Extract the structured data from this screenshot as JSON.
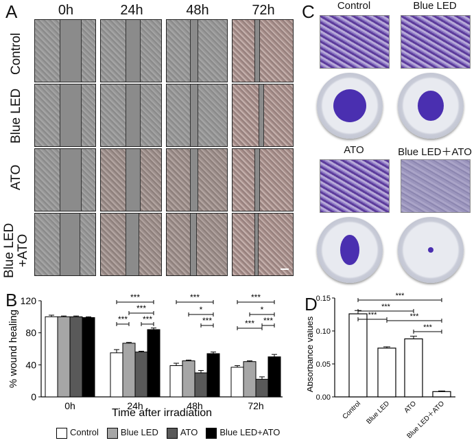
{
  "panel_labels": {
    "a": "A",
    "b": "B",
    "c": "C",
    "d": "D"
  },
  "panel_a": {
    "time_headers": [
      "0h",
      "24h",
      "48h",
      "72h"
    ],
    "row_labels": [
      "Control",
      "Blue LED",
      "ATO",
      "Blue LED\n+ATO"
    ],
    "row_label_lines": [
      [
        "Control"
      ],
      [
        "Blue LED"
      ],
      [
        "ATO"
      ],
      [
        "Blue LED",
        "+ATO"
      ]
    ]
  },
  "panel_c": {
    "labels": [
      "Control",
      "Blue LED",
      "ATO",
      "Blue LED＋ATO"
    ]
  },
  "chart_data": [
    {
      "type": "bar",
      "panel": "B",
      "categories": [
        "0h",
        "24h",
        "48h",
        "72h"
      ],
      "series": [
        {
          "name": "Control",
          "values": [
            100,
            55,
            39,
            37
          ],
          "errors": [
            2,
            4,
            3,
            2
          ],
          "color": "#ffffff"
        },
        {
          "name": "Blue LED",
          "values": [
            100,
            67,
            45,
            44
          ],
          "errors": [
            1,
            1,
            1,
            1
          ],
          "color": "#a6a6a6"
        },
        {
          "name": "ATO",
          "values": [
            100,
            56,
            30,
            22
          ],
          "errors": [
            1,
            1,
            3,
            3
          ],
          "color": "#595959"
        },
        {
          "name": "Blue LED+ATO",
          "values": [
            99,
            84,
            54,
            50
          ],
          "errors": [
            1,
            2,
            2,
            3
          ],
          "color": "#000000"
        }
      ],
      "xlabel": "Time after irradiation",
      "ylabel": "% wound healing",
      "ylim": [
        0,
        120
      ],
      "yticks": [
        "0",
        "40",
        "80",
        "120"
      ],
      "significance": [
        {
          "group": "24h",
          "from": 0,
          "to": 3,
          "label": "***"
        },
        {
          "group": "24h",
          "from": 1,
          "to": 3,
          "label": "***"
        },
        {
          "group": "24h",
          "from": 0,
          "to": 1,
          "label": "***"
        },
        {
          "group": "24h",
          "from": 2,
          "to": 3,
          "label": "***"
        },
        {
          "group": "48h",
          "from": 0,
          "to": 3,
          "label": "***"
        },
        {
          "group": "48h",
          "from": 1,
          "to": 3,
          "label": "*"
        },
        {
          "group": "48h",
          "from": 2,
          "to": 3,
          "label": "***"
        },
        {
          "group": "72h",
          "from": 0,
          "to": 3,
          "label": "***"
        },
        {
          "group": "72h",
          "from": 1,
          "to": 3,
          "label": "*"
        },
        {
          "group": "72h",
          "from": 0,
          "to": 2,
          "label": "***"
        },
        {
          "group": "72h",
          "from": 2,
          "to": 3,
          "label": "***"
        }
      ],
      "legend_placement": "bottom"
    },
    {
      "type": "bar",
      "panel": "D",
      "categories": [
        "Control",
        "Blue LED",
        "ATO",
        "Blue LED＋ATO"
      ],
      "values": [
        0.126,
        0.074,
        0.088,
        0.008
      ],
      "errors": [
        0.005,
        0.002,
        0.004,
        0.001
      ],
      "ylabel": "Absorbance values",
      "xlabel": "",
      "ylim": [
        0,
        0.15
      ],
      "yticks": [
        "0.00",
        "0.05",
        "0.10",
        "0.15"
      ],
      "significance": [
        {
          "from": 0,
          "to": 3,
          "label": "***"
        },
        {
          "from": 0,
          "to": 2,
          "label": "***"
        },
        {
          "from": 0,
          "to": 1,
          "label": "***"
        },
        {
          "from": 1,
          "to": 3,
          "label": "***"
        },
        {
          "from": 2,
          "to": 3,
          "label": "***"
        }
      ]
    }
  ]
}
